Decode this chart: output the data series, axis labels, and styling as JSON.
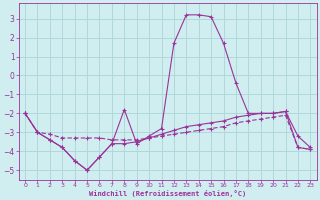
{
  "xlabel": "Windchill (Refroidissement éolien,°C)",
  "background_color": "#d0eef0",
  "grid_color": "#b0d8da",
  "line_color": "#993399",
  "xlim": [
    -0.5,
    23.5
  ],
  "ylim": [
    -5.5,
    3.8
  ],
  "yticks": [
    -5,
    -4,
    -3,
    -2,
    -1,
    0,
    1,
    2,
    3
  ],
  "xticks": [
    0,
    1,
    2,
    3,
    4,
    5,
    6,
    7,
    8,
    9,
    10,
    11,
    12,
    13,
    14,
    15,
    16,
    17,
    18,
    19,
    20,
    21,
    22,
    23
  ],
  "line1_x": [
    0,
    1,
    2,
    3,
    4,
    5,
    6,
    7,
    8,
    9,
    10,
    11,
    12,
    13,
    14,
    15,
    16,
    17,
    18,
    19,
    20,
    21,
    22,
    23
  ],
  "line1_y": [
    -2.0,
    -3.0,
    -3.4,
    -3.8,
    -4.5,
    -5.0,
    -4.3,
    -3.6,
    -1.8,
    -3.6,
    -3.2,
    -2.8,
    1.7,
    3.2,
    3.2,
    3.1,
    1.7,
    -0.4,
    -2.0,
    -2.0,
    -2.0,
    -1.9,
    -3.2,
    -3.8
  ],
  "line2_x": [
    0,
    1,
    2,
    3,
    4,
    5,
    6,
    7,
    8,
    9,
    10,
    11,
    12,
    13,
    14,
    15,
    16,
    17,
    18,
    19,
    20,
    21,
    22,
    23
  ],
  "line2_y": [
    -2.0,
    -3.0,
    -3.4,
    -3.8,
    -4.5,
    -5.0,
    -4.3,
    -3.6,
    -3.6,
    -3.5,
    -3.3,
    -3.1,
    -2.9,
    -2.7,
    -2.6,
    -2.5,
    -2.4,
    -2.2,
    -2.1,
    -2.0,
    -2.0,
    -1.9,
    -3.8,
    -3.9
  ],
  "line3_x": [
    0,
    1,
    2,
    3,
    4,
    5,
    6,
    7,
    8,
    9,
    10,
    11,
    12,
    13,
    14,
    15,
    16,
    17,
    18,
    19,
    20,
    21,
    22,
    23
  ],
  "line3_y": [
    -2.0,
    -3.0,
    -3.1,
    -3.3,
    -3.3,
    -3.3,
    -3.3,
    -3.4,
    -3.4,
    -3.4,
    -3.3,
    -3.2,
    -3.1,
    -3.0,
    -2.9,
    -2.8,
    -2.7,
    -2.5,
    -2.4,
    -2.3,
    -2.2,
    -2.1,
    -3.8,
    -3.9
  ]
}
